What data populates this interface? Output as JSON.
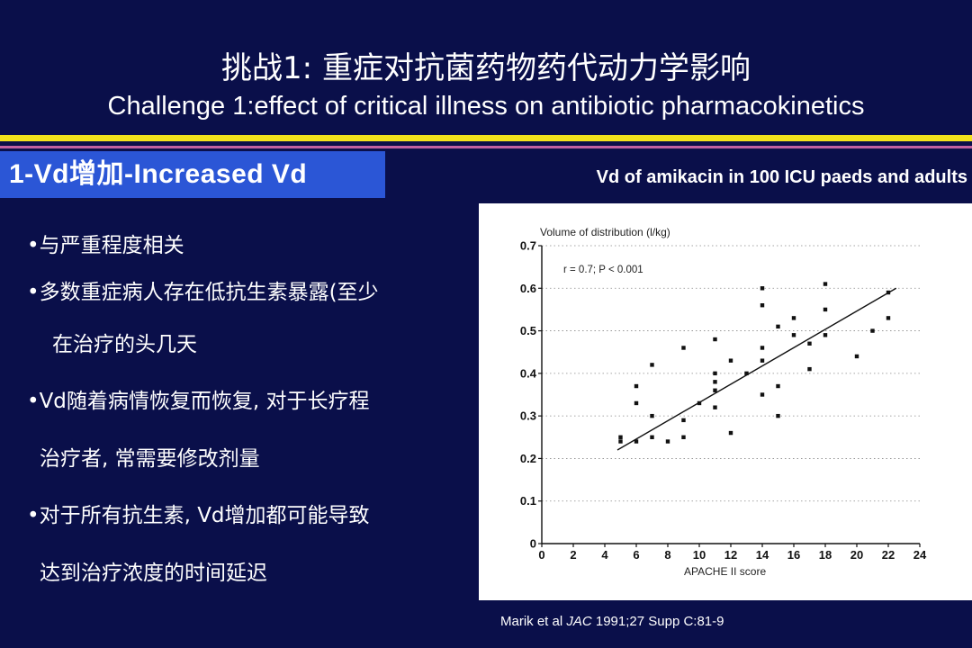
{
  "slide": {
    "title_zh": "挑战1: 重症对抗菌药物药代动力学影响",
    "title_en": "Challenge 1:effect of critical illness on antibiotic pharmacokinetics",
    "section_label": "1-Vd增加-Increased Vd",
    "chart_heading": "Vd of amikacin in 100 ICU paeds and adults",
    "bullets": [
      "•与严重程度相关",
      "•多数重症病人存在低抗生素暴露(至少",
      "在治疗的头几天",
      "•Vd随着病情恢复而恢复, 对于长疗程",
      "治疗者, 常需要修改剂量",
      "•对于所有抗生素, Vd增加都可能导致",
      "达到治疗浓度的时间延迟"
    ],
    "citation_author": "Marik et al ",
    "citation_journal": "JAC",
    "citation_rest": " 1991;27 Supp C:81-9"
  },
  "colors": {
    "background": "#0a0f4a",
    "section_box": "#2b56d6",
    "rule_yellow": "#f2e21c",
    "rule_pink": "#c060a0"
  },
  "chart_data": {
    "type": "scatter",
    "title": "",
    "ylabel": "Volume of distribution (l/kg)",
    "xlabel": "APACHE II score",
    "annotation": "r = 0.7; P < 0.001",
    "xlim": [
      0,
      24
    ],
    "ylim": [
      0,
      0.7
    ],
    "xticks": [
      0,
      2,
      4,
      6,
      8,
      10,
      12,
      14,
      16,
      18,
      20,
      22,
      24
    ],
    "yticks": [
      0,
      0.1,
      0.2,
      0.3,
      0.4,
      0.5,
      0.6,
      0.7
    ],
    "xtick_labels": [
      "0",
      "2",
      "4",
      "6",
      "8",
      "10",
      "12",
      "14",
      "16",
      "18",
      "20",
      "22",
      "24"
    ],
    "ytick_labels": [
      "0",
      "0.1",
      "0.2",
      "0.3",
      "0.4",
      "0.5",
      "0.6",
      "0.7"
    ],
    "grid": true,
    "points": [
      {
        "x": 5,
        "y": 0.25
      },
      {
        "x": 5,
        "y": 0.24
      },
      {
        "x": 6,
        "y": 0.37
      },
      {
        "x": 6,
        "y": 0.33
      },
      {
        "x": 6,
        "y": 0.24
      },
      {
        "x": 7,
        "y": 0.42
      },
      {
        "x": 7,
        "y": 0.3
      },
      {
        "x": 7,
        "y": 0.25
      },
      {
        "x": 8,
        "y": 0.24
      },
      {
        "x": 9,
        "y": 0.46
      },
      {
        "x": 9,
        "y": 0.29
      },
      {
        "x": 9,
        "y": 0.25
      },
      {
        "x": 10,
        "y": 0.33
      },
      {
        "x": 11,
        "y": 0.48
      },
      {
        "x": 11,
        "y": 0.4
      },
      {
        "x": 11,
        "y": 0.38
      },
      {
        "x": 11,
        "y": 0.36
      },
      {
        "x": 11,
        "y": 0.32
      },
      {
        "x": 12,
        "y": 0.43
      },
      {
        "x": 12,
        "y": 0.26
      },
      {
        "x": 13,
        "y": 0.4
      },
      {
        "x": 14,
        "y": 0.6
      },
      {
        "x": 14,
        "y": 0.56
      },
      {
        "x": 14,
        "y": 0.46
      },
      {
        "x": 14,
        "y": 0.43
      },
      {
        "x": 14,
        "y": 0.35
      },
      {
        "x": 15,
        "y": 0.51
      },
      {
        "x": 15,
        "y": 0.37
      },
      {
        "x": 15,
        "y": 0.3
      },
      {
        "x": 16,
        "y": 0.53
      },
      {
        "x": 16,
        "y": 0.49
      },
      {
        "x": 17,
        "y": 0.47
      },
      {
        "x": 17,
        "y": 0.41
      },
      {
        "x": 18,
        "y": 0.61
      },
      {
        "x": 18,
        "y": 0.55
      },
      {
        "x": 18,
        "y": 0.49
      },
      {
        "x": 20,
        "y": 0.44
      },
      {
        "x": 21,
        "y": 0.5
      },
      {
        "x": 22,
        "y": 0.59
      },
      {
        "x": 22,
        "y": 0.53
      }
    ],
    "regression_line": {
      "x0": 4.8,
      "y0": 0.22,
      "x1": 22.5,
      "y1": 0.6
    }
  }
}
